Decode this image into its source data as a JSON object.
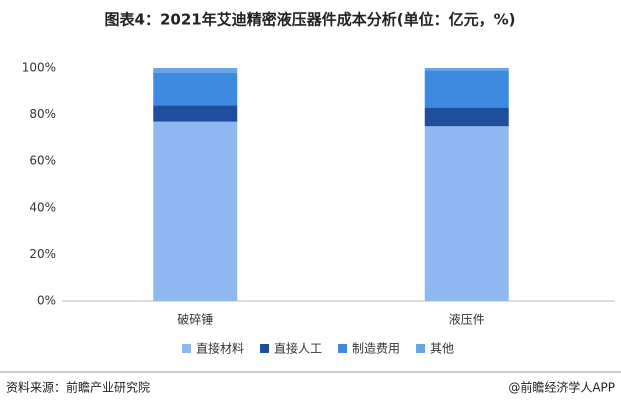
{
  "chart_data": {
    "type": "stacked_bar",
    "title": "图表4：2021年艾迪精密液压器件成本分析(单位：亿元，%)",
    "categories": [
      "破碎锤",
      "液压件"
    ],
    "series": [
      {
        "name": "直接材料",
        "color": "#8fb8f0",
        "values": [
          77,
          75
        ]
      },
      {
        "name": "直接人工",
        "color": "#1f4e9c",
        "values": [
          7,
          8
        ]
      },
      {
        "name": "制造费用",
        "color": "#3d8ae0",
        "values": [
          14,
          16
        ]
      },
      {
        "name": "其他",
        "color": "#6aa3e8",
        "values": [
          2,
          1
        ]
      }
    ],
    "ylim": [
      0,
      100
    ],
    "yticks": [
      {
        "value": 0,
        "label": "0%"
      },
      {
        "value": 20,
        "label": "20%"
      },
      {
        "value": 40,
        "label": "40%"
      },
      {
        "value": 60,
        "label": "60%"
      },
      {
        "value": 80,
        "label": "80%"
      },
      {
        "value": 100,
        "label": "100%"
      }
    ],
    "grid": false,
    "source": "资料来源：前瞻产业研究院",
    "credit": "@前瞻经济学人APP"
  }
}
